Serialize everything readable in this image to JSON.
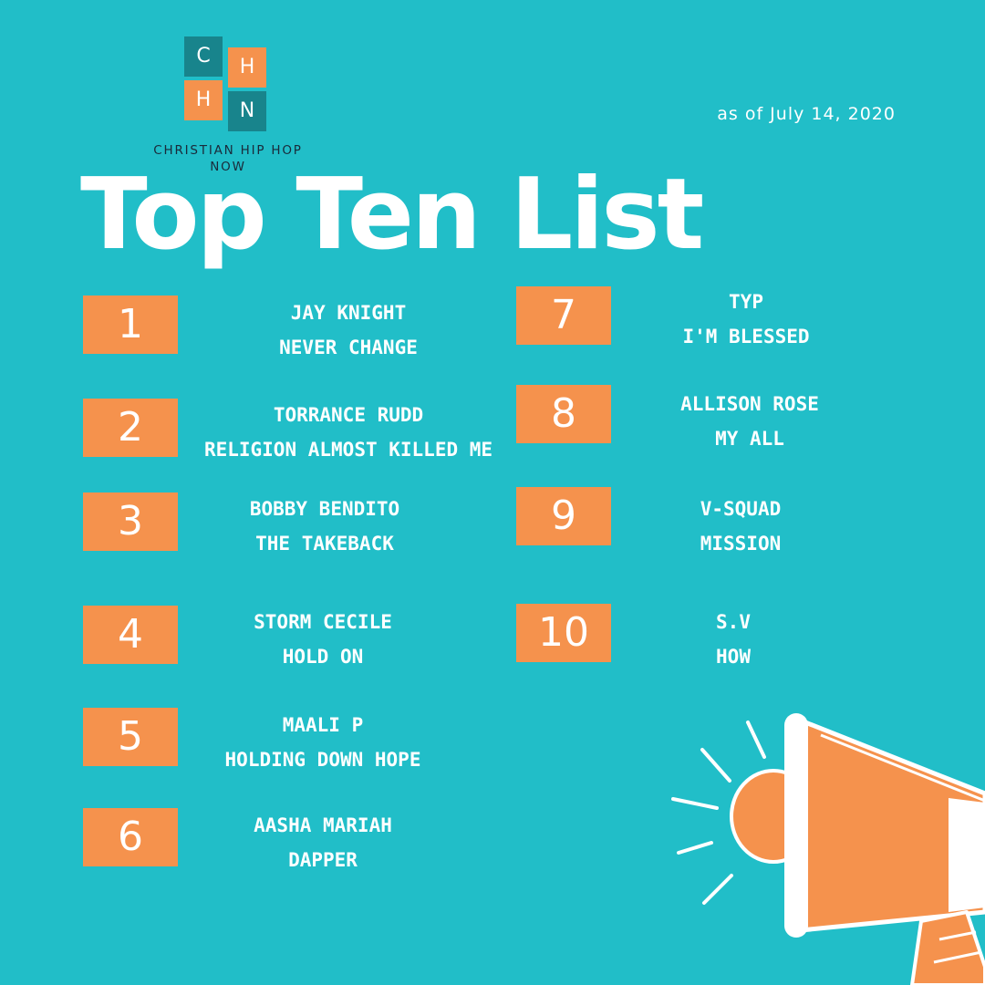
{
  "brand": {
    "tiles": [
      "C",
      "H",
      "H",
      "N"
    ],
    "name": "CHRISTIAN HIP HOP NOW"
  },
  "date_label": "as of July 14, 2020",
  "title": "Top Ten List",
  "list": [
    {
      "rank": "1",
      "artist": "JAY KNIGHT",
      "song": "NEVER CHANGE"
    },
    {
      "rank": "2",
      "artist": "TORRANCE RUDD",
      "song": "RELIGION ALMOST KILLED ME"
    },
    {
      "rank": "3",
      "artist": "BOBBY BENDITO",
      "song": "THE TAKEBACK"
    },
    {
      "rank": "4",
      "artist": "STORM CECILE",
      "song": "HOLD ON"
    },
    {
      "rank": "5",
      "artist": "MAALI P",
      "song": "HOLDING DOWN HOPE"
    },
    {
      "rank": "6",
      "artist": "AASHA MARIAH",
      "song": "DAPPER"
    },
    {
      "rank": "7",
      "artist": "TYP",
      "song": "I'M BLESSED"
    },
    {
      "rank": "8",
      "artist": "ALLISON ROSE",
      "song": "MY ALL"
    },
    {
      "rank": "9",
      "artist": "V-SQUAD",
      "song": "MISSION"
    },
    {
      "rank": "10",
      "artist": "S.V",
      "song": "HOW"
    }
  ],
  "colors": {
    "background": "#21bec8",
    "accent_orange": "#f5924d",
    "logo_teal": "#18848c",
    "text": "#ffffff"
  },
  "icons": [
    "megaphone-icon"
  ]
}
